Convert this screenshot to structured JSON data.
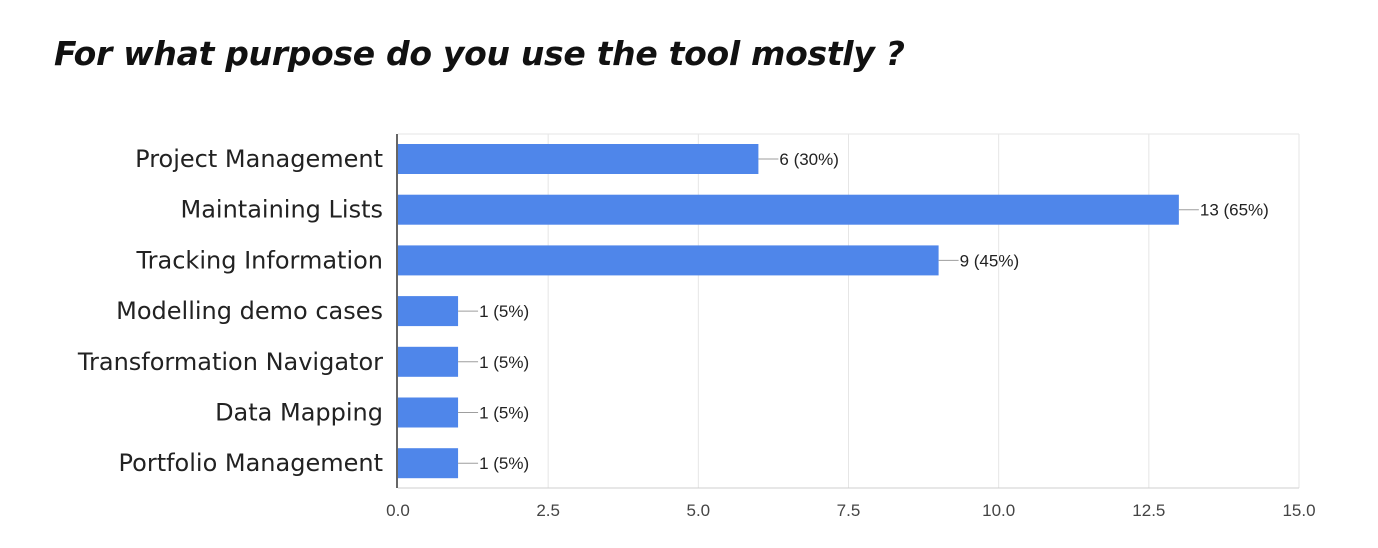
{
  "chart_data": {
    "type": "bar",
    "orientation": "horizontal",
    "title": "For what purpose do you use the tool mostly ?",
    "categories": [
      "Project Management",
      "Maintaining Lists",
      "Tracking Information",
      "Modelling demo cases",
      "Transformation Navigator",
      "Data Mapping",
      "Portfolio Management"
    ],
    "values": [
      6,
      13,
      9,
      1,
      1,
      1,
      1
    ],
    "data_labels": [
      "6 (30%)",
      "13 (65%)",
      "9 (45%)",
      "1 (5%)",
      "1 (5%)",
      "1 (5%)",
      "1 (5%)"
    ],
    "xlim": [
      0,
      15
    ],
    "xticks": [
      0,
      2.5,
      5,
      7.5,
      10,
      12.5,
      15
    ],
    "xtick_labels": [
      "0.0",
      "2.5",
      "5.0",
      "7.5",
      "10.0",
      "12.5",
      "15.0"
    ],
    "grid": true,
    "bar_color": "#4f86ea",
    "xlabel": "",
    "ylabel": ""
  }
}
